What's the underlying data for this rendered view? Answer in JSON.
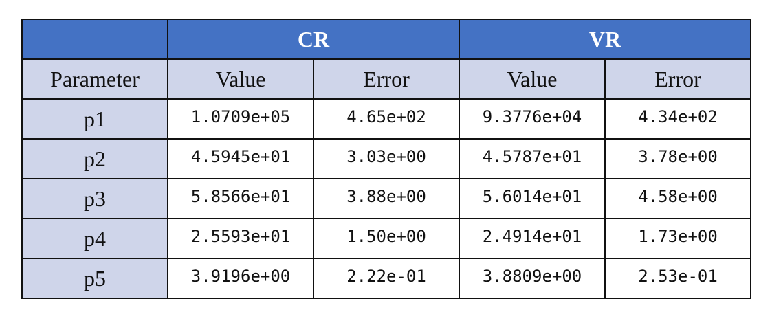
{
  "table": {
    "corner_label": "",
    "groups": [
      {
        "label": "CR"
      },
      {
        "label": "VR"
      }
    ],
    "parameter_header": "Parameter",
    "sub_headers": [
      "Value",
      "Error",
      "Value",
      "Error"
    ],
    "rows": [
      {
        "param": "p1",
        "cells": [
          "1.0709e+05",
          "4.65e+02",
          "9.3776e+04",
          "4.34e+02"
        ]
      },
      {
        "param": "p2",
        "cells": [
          "4.5945e+01",
          "3.03e+00",
          "4.5787e+01",
          "3.78e+00"
        ]
      },
      {
        "param": "p3",
        "cells": [
          "5.8566e+01",
          "3.88e+00",
          "5.6014e+01",
          "4.58e+00"
        ]
      },
      {
        "param": "p4",
        "cells": [
          "2.5593e+01",
          "1.50e+00",
          "2.4914e+01",
          "1.73e+00"
        ]
      },
      {
        "param": "p5",
        "cells": [
          "3.9196e+00",
          "2.22e-01",
          "3.8809e+00",
          "2.53e-01"
        ]
      }
    ]
  }
}
